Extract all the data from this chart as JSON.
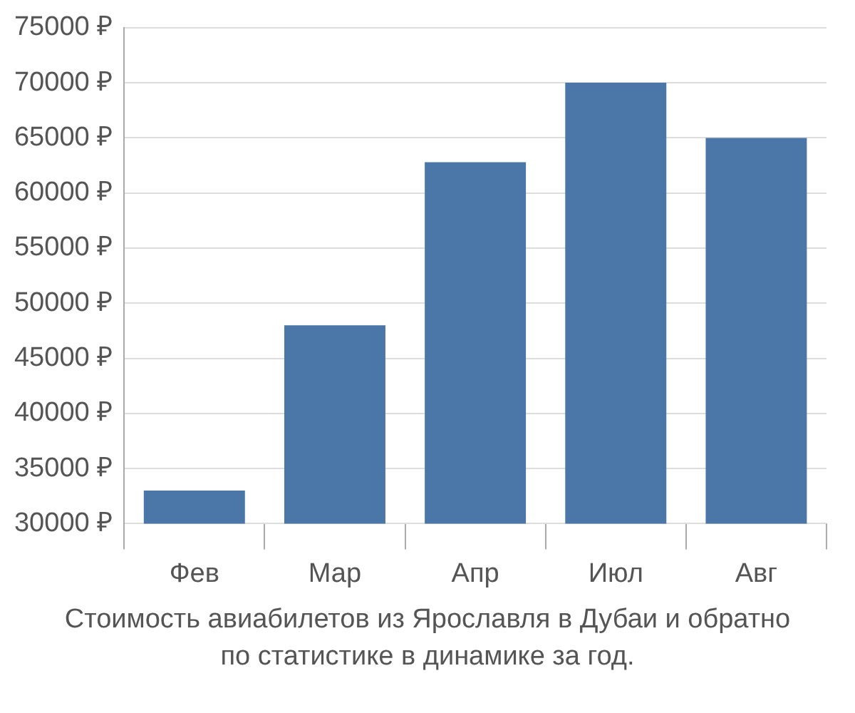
{
  "chart_data": {
    "type": "bar",
    "categories": [
      "Фев",
      "Мар",
      "Апр",
      "Июл",
      "Авг"
    ],
    "values": [
      33000,
      48000,
      62800,
      70000,
      65000
    ],
    "color": "#4a76a8",
    "ylim": [
      30000,
      75000
    ],
    "yticks": [
      {
        "value": 30000,
        "label": "30000 ₽"
      },
      {
        "value": 35000,
        "label": "35000 ₽"
      },
      {
        "value": 40000,
        "label": "40000 ₽"
      },
      {
        "value": 45000,
        "label": "45000 ₽"
      },
      {
        "value": 50000,
        "label": "50000 ₽"
      },
      {
        "value": 55000,
        "label": "55000 ₽"
      },
      {
        "value": 60000,
        "label": "60000 ₽"
      },
      {
        "value": 65000,
        "label": "65000 ₽"
      },
      {
        "value": 70000,
        "label": "70000 ₽"
      },
      {
        "value": 75000,
        "label": "75000 ₽"
      }
    ],
    "grid": "y",
    "annotations": [
      "Стоимость авиабилетов из Ярославля в Дубаи и обратно",
      "по статистике в динамике за год."
    ]
  }
}
